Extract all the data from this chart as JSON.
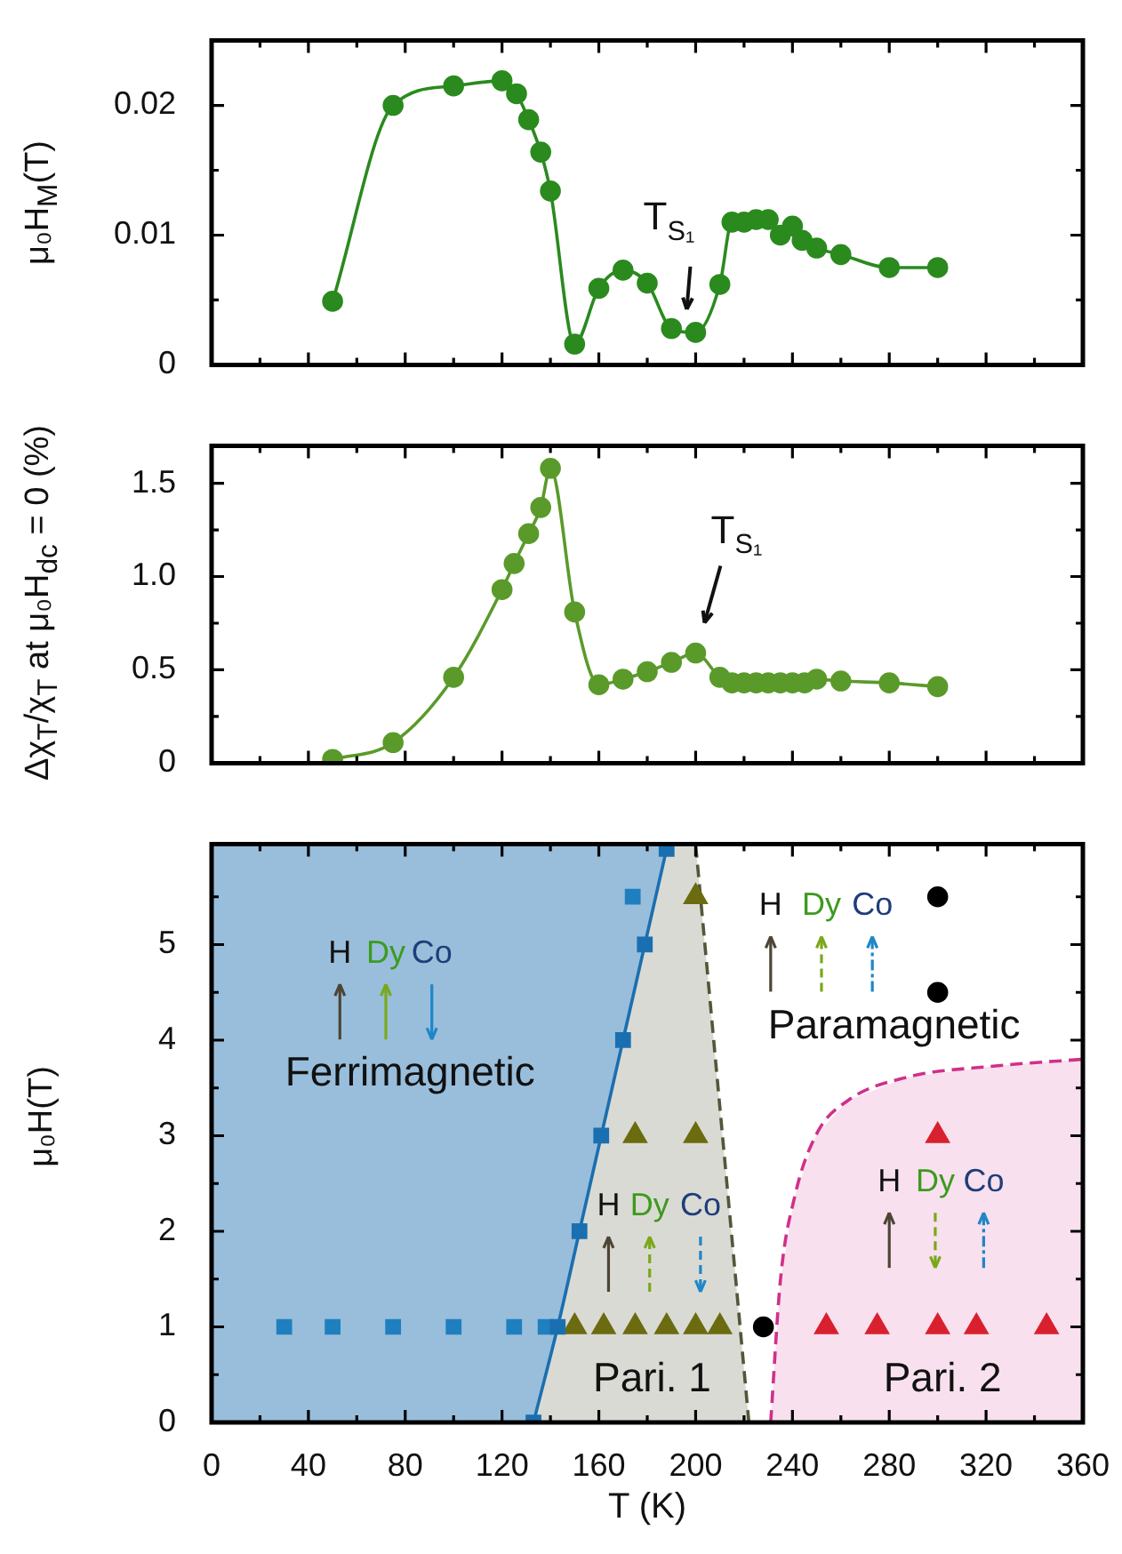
{
  "chart_data": [
    {
      "type": "line",
      "ylabel": "μ₀H$_{M}$(T)",
      "marker": "circle",
      "legend": false,
      "grid": false,
      "tick_labels": "y",
      "x": [
        50,
        75,
        100,
        120,
        126,
        131,
        136,
        140,
        150,
        160,
        170,
        180,
        190,
        200,
        210,
        215,
        220,
        225,
        230,
        235,
        240,
        244,
        250,
        260,
        280,
        300
      ],
      "series": [
        {
          "color": "#2a8a1e",
          "values": [
            0.0049,
            0.02,
            0.0215,
            0.0219,
            0.0209,
            0.0189,
            0.0164,
            0.0134,
            0.0016,
            0.0059,
            0.0073,
            0.0063,
            0.0028,
            0.0025,
            0.0062,
            0.011,
            0.011,
            0.0112,
            0.0112,
            0.01,
            0.0107,
            0.0096,
            0.009,
            0.0085,
            0.0075,
            0.0075
          ]
        }
      ],
      "xlim": [
        0,
        360
      ],
      "xticks": [
        0,
        {
          "value": 20,
          "label": null
        },
        40,
        {
          "value": 60,
          "label": null
        },
        80,
        {
          "value": 100,
          "label": null
        },
        120,
        {
          "value": 140,
          "label": null
        },
        160,
        {
          "value": 180,
          "label": null
        },
        200,
        {
          "value": 220,
          "label": null
        },
        240,
        {
          "value": 260,
          "label": null
        },
        280,
        {
          "value": 300,
          "label": null
        },
        320,
        {
          "value": 340,
          "label": null
        },
        360
      ],
      "ylim": [
        0,
        0.025
      ],
      "yticks": [
        0,
        {
          "value": 0.005,
          "label": null
        },
        0.01,
        {
          "value": 0.015,
          "label": null
        },
        0.02
      ],
      "annotations": [
        {
          "text": "T$_{S₁}$",
          "x": 200,
          "y": 0.0025
        }
      ]
    },
    {
      "type": "line",
      "ylabel": "Δχ$_{T}$/χ$_{T}$ at μ₀H$_{dc}$ = 0 (%)",
      "marker": "circle",
      "legend": false,
      "grid": false,
      "tick_labels": "y",
      "x": [
        50,
        75,
        100,
        120,
        125,
        131,
        136,
        140,
        150,
        160,
        170,
        180,
        190,
        200,
        210,
        215,
        220,
        225,
        230,
        235,
        240,
        245,
        250,
        260,
        280,
        300
      ],
      "series": [
        {
          "color": "#5a9a2a",
          "values": [
            0.02,
            0.11,
            0.46,
            0.93,
            1.07,
            1.23,
            1.37,
            1.58,
            0.81,
            0.42,
            0.45,
            0.49,
            0.54,
            0.59,
            0.46,
            0.43,
            0.43,
            0.43,
            0.43,
            0.43,
            0.43,
            0.43,
            0.45,
            0.44,
            0.43,
            0.41
          ]
        }
      ],
      "xlim": [
        0,
        360
      ],
      "xticks": [
        0,
        {
          "value": 20,
          "label": null
        },
        40,
        {
          "value": 60,
          "label": null
        },
        80,
        {
          "value": 100,
          "label": null
        },
        120,
        {
          "value": 140,
          "label": null
        },
        160,
        {
          "value": 180,
          "label": null
        },
        200,
        {
          "value": 220,
          "label": null
        },
        240,
        {
          "value": 260,
          "label": null
        },
        280,
        {
          "value": 300,
          "label": null
        },
        320,
        {
          "value": 340,
          "label": null
        },
        360
      ],
      "ylim": [
        0,
        1.7
      ],
      "yticks": [
        0,
        {
          "value": 0.25,
          "label": null
        },
        {
          "value": 0.5,
          "label": "0.5"
        },
        {
          "value": 0.75,
          "label": null
        },
        {
          "value": 1,
          "label": "1.0"
        },
        {
          "value": 1.25,
          "label": null
        },
        1.5
      ],
      "annotations": [
        {
          "text": "T$_{S₁}$",
          "x": 200,
          "y": 0.59
        }
      ]
    },
    {
      "type": "scatter",
      "xlabel": "T (K)",
      "ylabel": "μ₀H(T)",
      "legend": false,
      "grid": false,
      "series": [
        {
          "type": "line",
          "color": "#1a6fb0",
          "marker": "square",
          "x": [
            133,
            143,
            152,
            161,
            170,
            179,
            188
          ],
          "values": [
            0,
            1,
            2,
            3,
            4,
            5,
            6
          ]
        },
        {
          "color": "#1f7fbf",
          "marker": "square",
          "x": [
            30,
            50,
            75,
            100,
            125,
            138,
            174
          ],
          "values": [
            1,
            1,
            1,
            1,
            1,
            1,
            5.5
          ]
        },
        {
          "color": "#6b6b10",
          "marker": "triangle",
          "x": [
            150,
            162,
            175,
            188,
            200,
            210,
            175,
            200,
            200
          ],
          "values": [
            1,
            1,
            1,
            1,
            1,
            1,
            3,
            3,
            5.5
          ]
        },
        {
          "type": "line",
          "color": "#55553a",
          "line_style": "dashed",
          "marker": "none",
          "x": [
            222,
            200
          ],
          "values": [
            0,
            6.05
          ]
        },
        {
          "color": "#000000",
          "marker": "circle",
          "x": [
            228,
            300,
            300
          ],
          "values": [
            1,
            5.5,
            4.5
          ]
        },
        {
          "color": "#d9202e",
          "marker": "triangle",
          "x": [
            254,
            275,
            300,
            316,
            345,
            300
          ],
          "values": [
            1,
            1,
            1,
            1,
            1,
            3
          ]
        },
        {
          "type": "line",
          "color": "#d0308a",
          "line_style": "dashed",
          "marker": "none",
          "x": [
            231,
            235,
            241,
            250,
            263,
            287,
            324,
            360
          ],
          "values": [
            0,
            1.48,
            2.37,
            3.02,
            3.37,
            3.61,
            3.73,
            3.8
          ]
        }
      ],
      "xlim": [
        0,
        360
      ],
      "xticks": [
        0,
        {
          "value": 20,
          "label": null
        },
        40,
        {
          "value": 60,
          "label": null
        },
        80,
        {
          "value": 100,
          "label": null
        },
        120,
        {
          "value": 140,
          "label": null
        },
        160,
        {
          "value": 180,
          "label": null
        },
        200,
        {
          "value": 220,
          "label": null
        },
        240,
        {
          "value": 260,
          "label": null
        },
        280,
        {
          "value": 300,
          "label": null
        },
        320,
        {
          "value": 340,
          "label": null
        },
        360
      ],
      "ylim": [
        0,
        6.05
      ],
      "yticks": [
        0,
        {
          "value": 0.5,
          "label": null
        },
        1,
        {
          "value": 1.5,
          "label": null
        },
        2,
        {
          "value": 2.5,
          "label": null
        },
        3,
        {
          "value": 3.5,
          "label": null
        },
        4,
        {
          "value": 4.5,
          "label": null
        },
        5,
        {
          "value": 5.5,
          "label": null
        }
      ],
      "annotations": [
        "Ferrimagnetic",
        "Paramagnetic",
        "Pari. 1",
        "Pari. 2",
        "H",
        "Dy",
        "Co",
        "H",
        "Dy",
        "Co",
        "H",
        "Dy",
        "Co",
        "H",
        "Dy",
        "Co"
      ]
    }
  ]
}
